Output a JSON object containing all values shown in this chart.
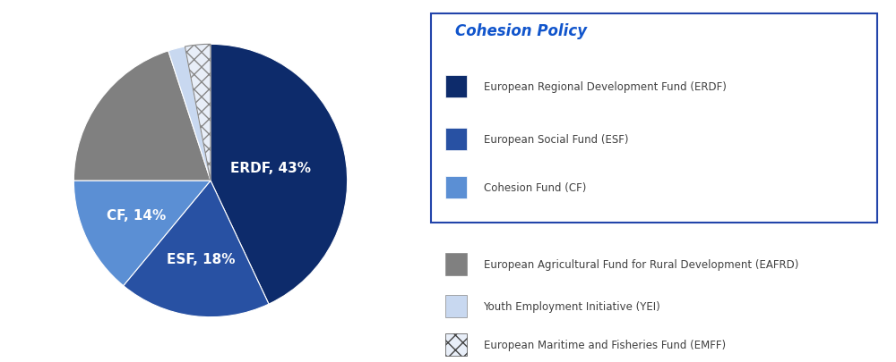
{
  "slices": [
    43,
    18,
    14,
    20,
    2,
    3
  ],
  "slice_labels": [
    "ERDF, 43%",
    "ESF, 18%",
    "CF, 14%",
    "",
    "",
    ""
  ],
  "colors": [
    "#0D2B6B",
    "#2851A3",
    "#5B8FD4",
    "#808080",
    "#C8D8F0",
    "#E8EEF8"
  ],
  "hatch": [
    null,
    null,
    null,
    null,
    null,
    "xx"
  ],
  "legend_title": "Cohesion Policy",
  "legend_entries": [
    "European Regional Development Fund (ERDF)",
    "European Social Fund (ESF)",
    "Cohesion Fund (CF)",
    "European Agricultural Fund for Rural Development (EAFRD)",
    "Youth Employment Initiative (YEI)",
    "European Maritime and Fisheries Fund (EMFF)"
  ],
  "legend_colors": [
    "#0D2B6B",
    "#2851A3",
    "#5B8FD4",
    "#808080",
    "#C8D8F0",
    "#E8EEF8"
  ],
  "legend_hatch": [
    null,
    null,
    null,
    null,
    null,
    "xx"
  ],
  "label_color": "#FFFFFF",
  "label_fontsize": 11,
  "start_angle": 90,
  "background_color": "#FFFFFF",
  "legend_text_color": "#404040",
  "legend_title_color": "#1155CC",
  "box_edge_color": "#2244AA",
  "pie_label_positions": [
    {
      "idx": 0,
      "r": 0.45,
      "label": "ERDF, 43%"
    },
    {
      "idx": 1,
      "r": 0.58,
      "label": "ESF, 18%"
    },
    {
      "idx": 2,
      "r": 0.6,
      "label": "CF, 14%"
    }
  ]
}
